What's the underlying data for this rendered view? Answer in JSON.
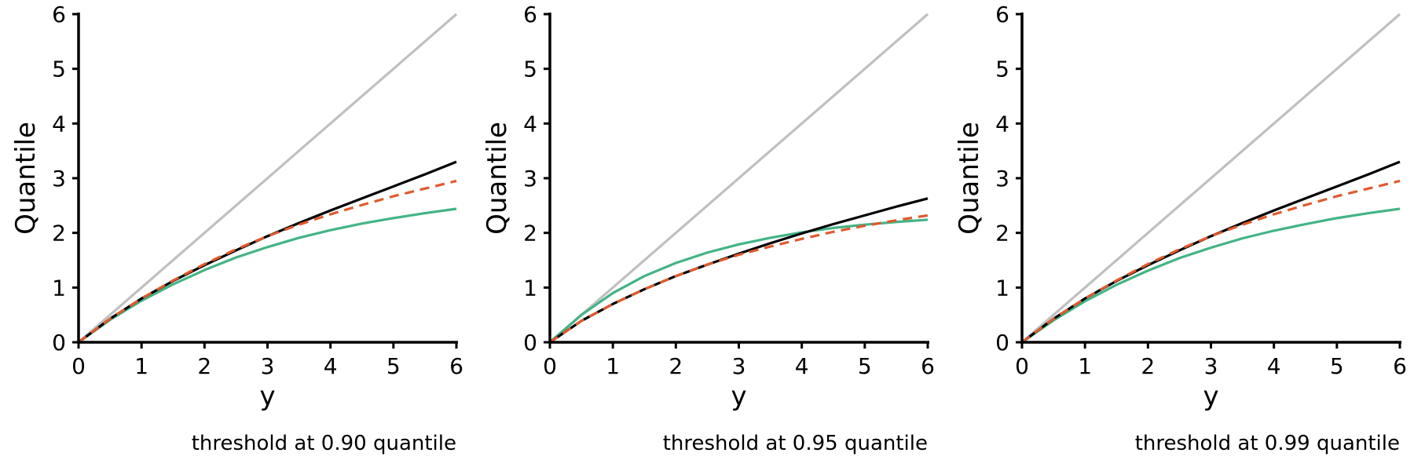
{
  "chart_data": [
    {
      "type": "line",
      "caption": "threshold at 0.90 quantile",
      "xlabel": "y",
      "ylabel": "Quantile",
      "xlim": [
        0,
        6
      ],
      "ylim": [
        0,
        6
      ],
      "xticks": [
        "0",
        "1",
        "2",
        "3",
        "4",
        "5",
        "6"
      ],
      "yticks": [
        "0",
        "1",
        "2",
        "3",
        "4",
        "5",
        "6"
      ],
      "grid": false,
      "series": [
        {
          "color": "#c0c0c0",
          "style": "solid",
          "x": [
            0,
            6
          ],
          "y": [
            0,
            6
          ]
        },
        {
          "color": "#44b386",
          "style": "solid",
          "x": [
            0,
            0.5,
            1,
            1.5,
            2,
            2.5,
            3,
            3.5,
            4,
            4.5,
            5,
            5.5,
            6
          ],
          "y": [
            0,
            0.41,
            0.76,
            1.06,
            1.32,
            1.55,
            1.74,
            1.91,
            2.05,
            2.17,
            2.27,
            2.36,
            2.44
          ]
        },
        {
          "color": "#000000",
          "style": "solid",
          "x": [
            0,
            0.5,
            1,
            1.5,
            2,
            2.5,
            3,
            3.5,
            4,
            4.5,
            5,
            5.5,
            6
          ],
          "y": [
            0,
            0.43,
            0.8,
            1.12,
            1.41,
            1.68,
            1.94,
            2.18,
            2.41,
            2.63,
            2.85,
            3.07,
            3.3
          ]
        },
        {
          "color": "#e05a2e",
          "style": "dashed",
          "x": [
            0,
            0.5,
            1,
            1.5,
            2,
            2.5,
            3,
            3.5,
            4,
            4.5,
            5,
            5.5,
            6
          ],
          "y": [
            0,
            0.43,
            0.8,
            1.13,
            1.43,
            1.7,
            1.94,
            2.15,
            2.34,
            2.51,
            2.67,
            2.81,
            2.95
          ]
        }
      ]
    },
    {
      "type": "line",
      "caption": "threshold at 0.95 quantile",
      "xlabel": "y",
      "ylabel": "Quantile",
      "xlim": [
        0,
        6
      ],
      "ylim": [
        0,
        6
      ],
      "xticks": [
        "0",
        "1",
        "2",
        "3",
        "4",
        "5",
        "6"
      ],
      "yticks": [
        "0",
        "1",
        "2",
        "3",
        "4",
        "5",
        "6"
      ],
      "grid": false,
      "series": [
        {
          "color": "#c0c0c0",
          "style": "solid",
          "x": [
            0,
            6
          ],
          "y": [
            0,
            6
          ]
        },
        {
          "color": "#44b386",
          "style": "solid",
          "x": [
            0,
            0.5,
            1,
            1.5,
            2,
            2.5,
            3,
            3.5,
            4,
            4.5,
            5,
            5.5,
            6
          ],
          "y": [
            0,
            0.5,
            0.9,
            1.21,
            1.45,
            1.64,
            1.79,
            1.91,
            2.01,
            2.09,
            2.15,
            2.2,
            2.24
          ]
        },
        {
          "color": "#000000",
          "style": "solid",
          "x": [
            0,
            0.5,
            1,
            1.5,
            2,
            2.5,
            3,
            3.5,
            4,
            4.5,
            5,
            5.5,
            6
          ],
          "y": [
            0,
            0.39,
            0.7,
            0.97,
            1.21,
            1.42,
            1.62,
            1.81,
            1.99,
            2.16,
            2.32,
            2.48,
            2.63
          ]
        },
        {
          "color": "#e05a2e",
          "style": "dashed",
          "x": [
            0,
            0.5,
            1,
            1.5,
            2,
            2.5,
            3,
            3.5,
            4,
            4.5,
            5,
            5.5,
            6
          ],
          "y": [
            0,
            0.39,
            0.7,
            0.97,
            1.21,
            1.42,
            1.6,
            1.75,
            1.89,
            2.02,
            2.13,
            2.23,
            2.32
          ]
        }
      ]
    },
    {
      "type": "line",
      "caption": "threshold at 0.99 quantile",
      "xlabel": "y",
      "ylabel": "Quantile",
      "xlim": [
        0,
        6
      ],
      "ylim": [
        0,
        6
      ],
      "xticks": [
        "0",
        "1",
        "2",
        "3",
        "4",
        "5",
        "6"
      ],
      "yticks": [
        "0",
        "1",
        "2",
        "3",
        "4",
        "5",
        "6"
      ],
      "grid": false,
      "series": [
        {
          "color": "#c0c0c0",
          "style": "solid",
          "x": [
            0,
            6
          ],
          "y": [
            0,
            6
          ]
        },
        {
          "color": "#44b386",
          "style": "solid",
          "x": [
            0,
            0.5,
            1,
            1.5,
            2,
            2.5,
            3,
            3.5,
            4,
            4.5,
            5,
            5.5,
            6
          ],
          "y": [
            0,
            0.4,
            0.75,
            1.05,
            1.31,
            1.54,
            1.73,
            1.9,
            2.04,
            2.16,
            2.27,
            2.36,
            2.44
          ]
        },
        {
          "color": "#000000",
          "style": "solid",
          "x": [
            0,
            0.5,
            1,
            1.5,
            2,
            2.5,
            3,
            3.5,
            4,
            4.5,
            5,
            5.5,
            6
          ],
          "y": [
            0,
            0.43,
            0.8,
            1.12,
            1.41,
            1.68,
            1.94,
            2.18,
            2.41,
            2.63,
            2.85,
            3.07,
            3.3
          ]
        },
        {
          "color": "#e05a2e",
          "style": "dashed",
          "x": [
            0,
            0.5,
            1,
            1.5,
            2,
            2.5,
            3,
            3.5,
            4,
            4.5,
            5,
            5.5,
            6
          ],
          "y": [
            0,
            0.43,
            0.8,
            1.13,
            1.43,
            1.7,
            1.94,
            2.15,
            2.34,
            2.51,
            2.67,
            2.81,
            2.95
          ]
        }
      ]
    }
  ]
}
